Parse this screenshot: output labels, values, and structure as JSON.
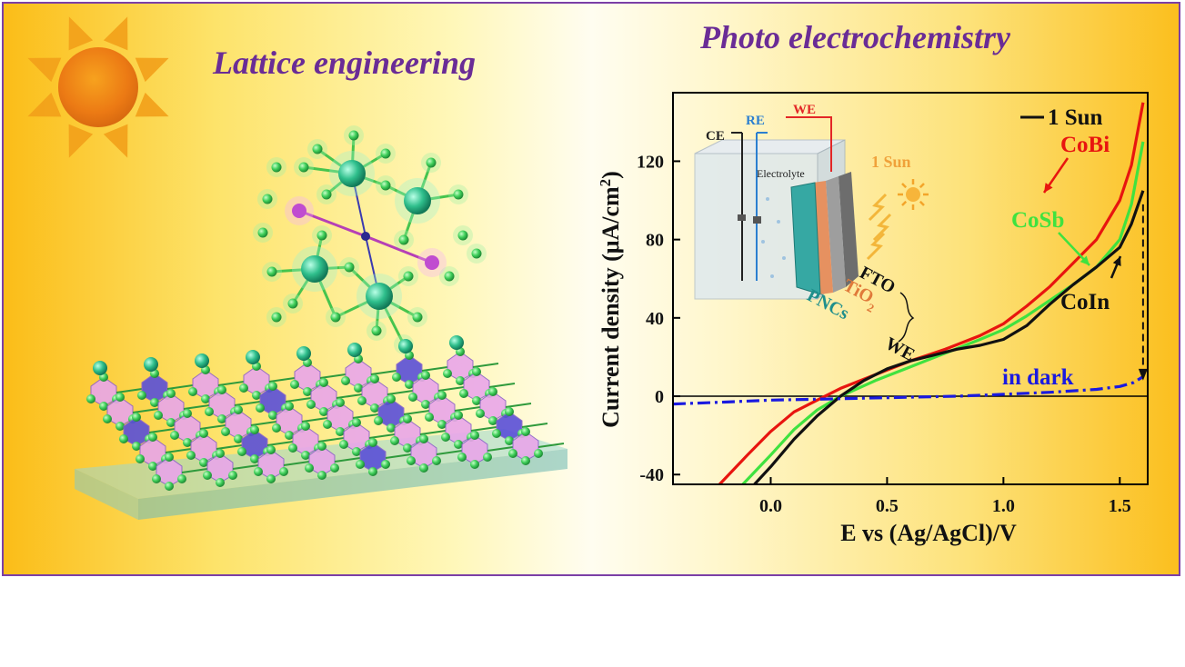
{
  "headings": {
    "left": "Lattice engineering",
    "right": "Photo electrochemistry"
  },
  "colors": {
    "title_purple": "#6a2c96",
    "frame_border": "#7b3fa6",
    "sun_orange": "#f2a01a"
  },
  "decor_icons": [
    "sun-icon",
    "molecule-cluster-icon",
    "crystal-lattice-slab-icon"
  ],
  "inset": {
    "ce_label": "CE",
    "re_label": "RE",
    "we_top_label": "WE",
    "electrolyte_label": "Electrolyte",
    "sun_label": "1 Sun",
    "fto_label": "FTO",
    "tio2_label": "TiO",
    "tio2_subscript": "2",
    "pncs_label": "PNCs",
    "we_bottom_label": "WE"
  },
  "chart_data": {
    "type": "line",
    "xlabel": "E vs (Ag/AgCl)/V",
    "ylabel": "Current density (μA/cm",
    "ylabel_superscript": "2",
    "ylabel_close": ")",
    "xlim": [
      -0.42,
      1.62
    ],
    "ylim": [
      -45,
      155
    ],
    "x_ticks": [
      0.0,
      0.5,
      1.0,
      1.5
    ],
    "x_tick_labels": [
      "0.0",
      "0.5",
      "1.0",
      "1.5"
    ],
    "y_ticks": [
      -40,
      0,
      40,
      80,
      120
    ],
    "y_tick_labels": [
      "-40",
      "0",
      "40",
      "80",
      "120"
    ],
    "zero_line": true,
    "legend": {
      "entry": "1 Sun",
      "placement": "top-right"
    },
    "series": [
      {
        "name": "CoBi",
        "color": "#e8150f",
        "x": [
          -0.22,
          -0.1,
          0.0,
          0.1,
          0.2,
          0.3,
          0.45,
          0.6,
          0.75,
          0.9,
          1.0,
          1.1,
          1.2,
          1.3,
          1.4,
          1.5,
          1.55,
          1.6
        ],
        "y": [
          -45,
          -30,
          -18,
          -8,
          -2,
          4,
          11,
          18,
          24,
          31,
          37,
          46,
          56,
          68,
          80,
          100,
          118,
          150
        ]
      },
      {
        "name": "CoSb",
        "color": "#3fe23f",
        "x": [
          -0.12,
          0.0,
          0.1,
          0.2,
          0.3,
          0.45,
          0.6,
          0.75,
          0.9,
          1.0,
          1.1,
          1.2,
          1.3,
          1.4,
          1.5,
          1.55,
          1.6
        ],
        "y": [
          -45,
          -30,
          -17,
          -7,
          0,
          8,
          15,
          22,
          29,
          34,
          41,
          49,
          57,
          66,
          80,
          98,
          130
        ]
      },
      {
        "name": "CoIn",
        "color": "#111111",
        "x": [
          -0.07,
          0.0,
          0.1,
          0.2,
          0.3,
          0.4,
          0.5,
          0.6,
          0.7,
          0.8,
          0.9,
          1.0,
          1.1,
          1.2,
          1.3,
          1.4,
          1.5,
          1.55,
          1.6
        ],
        "y": [
          -45,
          -36,
          -22,
          -10,
          0,
          8,
          14,
          18,
          21,
          24,
          26,
          29,
          36,
          47,
          57,
          66,
          76,
          88,
          105
        ]
      },
      {
        "name": "in dark",
        "color": "#1a1ae0",
        "dash": true,
        "x": [
          -0.42,
          -0.2,
          0.0,
          0.2,
          0.4,
          0.6,
          0.8,
          1.0,
          1.2,
          1.4,
          1.5,
          1.56,
          1.6
        ],
        "y": [
          -4,
          -3,
          -2,
          -1.5,
          -1,
          -0.5,
          0,
          1,
          2,
          3.5,
          5,
          7,
          10
        ]
      }
    ],
    "annotations": [
      {
        "text": "CoBi",
        "color": "#e8150f"
      },
      {
        "text": "CoSb",
        "color": "#3fe23f"
      },
      {
        "text": "CoIn",
        "color": "#111111"
      },
      {
        "text": "in dark",
        "color": "#1a1ae0"
      }
    ]
  }
}
